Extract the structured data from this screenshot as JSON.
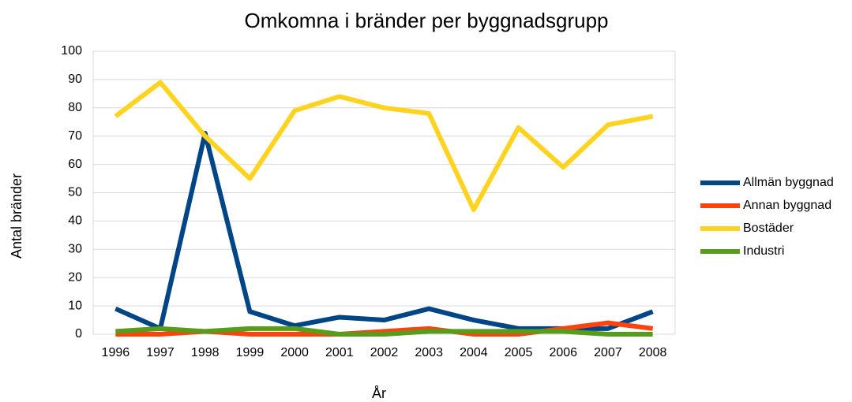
{
  "chart_data": {
    "type": "line",
    "title": "Omkomna i bränder per byggnadsgrupp",
    "xlabel": "År",
    "ylabel": "Antal bränder",
    "categories": [
      "1996",
      "1997",
      "1998",
      "1999",
      "2000",
      "2001",
      "2002",
      "2003",
      "2004",
      "2005",
      "2006",
      "2007",
      "2008"
    ],
    "series": [
      {
        "name": "Allmän byggnad",
        "color": "#004586",
        "values": [
          9,
          2,
          71,
          8,
          3,
          6,
          5,
          9,
          5,
          2,
          2,
          2,
          8
        ]
      },
      {
        "name": "Annan byggnad",
        "color": "#ff420e",
        "values": [
          0,
          0,
          1,
          0,
          0,
          0,
          1,
          2,
          0,
          0,
          2,
          4,
          2
        ]
      },
      {
        "name": "Bostäder",
        "color": "#ffd320",
        "values": [
          77,
          89,
          70,
          55,
          79,
          84,
          80,
          78,
          44,
          73,
          59,
          74,
          77
        ]
      },
      {
        "name": "Industri",
        "color": "#579d1c",
        "values": [
          1,
          2,
          1,
          2,
          2,
          0,
          0,
          1,
          1,
          1,
          1,
          0,
          0
        ]
      }
    ],
    "ylim": [
      0,
      100
    ],
    "yticks": [
      0,
      10,
      20,
      30,
      40,
      50,
      60,
      70,
      80,
      90,
      100
    ],
    "grid": true,
    "legend": "right"
  }
}
